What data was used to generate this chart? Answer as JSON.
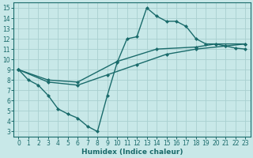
{
  "xlabel": "Humidex (Indice chaleur)",
  "bg_color": "#c8e8e8",
  "grid_color": "#a8d0d0",
  "line_color": "#1a6b6b",
  "marker": "D",
  "markersize": 2.5,
  "linewidth": 1.0,
  "xlim": [
    -0.5,
    23.5
  ],
  "ylim": [
    2.5,
    15.5
  ],
  "xticks": [
    0,
    1,
    2,
    3,
    4,
    5,
    6,
    7,
    8,
    9,
    10,
    11,
    12,
    13,
    14,
    15,
    16,
    17,
    18,
    19,
    20,
    21,
    22,
    23
  ],
  "yticks": [
    3,
    4,
    5,
    6,
    7,
    8,
    9,
    10,
    11,
    12,
    13,
    14,
    15
  ],
  "series1": [
    [
      0,
      9.0
    ],
    [
      1,
      8.0
    ],
    [
      2,
      7.5
    ],
    [
      3,
      6.5
    ],
    [
      4,
      5.2
    ],
    [
      5,
      4.7
    ],
    [
      6,
      4.3
    ],
    [
      7,
      3.5
    ],
    [
      8,
      3.0
    ],
    [
      9,
      6.5
    ],
    [
      10,
      9.7
    ],
    [
      11,
      12.0
    ],
    [
      12,
      12.2
    ],
    [
      13,
      15.0
    ],
    [
      14,
      14.2
    ],
    [
      15,
      13.7
    ],
    [
      16,
      13.7
    ],
    [
      17,
      13.2
    ],
    [
      18,
      12.0
    ],
    [
      19,
      11.5
    ],
    [
      20,
      11.5
    ],
    [
      21,
      11.3
    ],
    [
      22,
      11.1
    ],
    [
      23,
      11.0
    ]
  ],
  "series2": [
    [
      0,
      9.0
    ],
    [
      3,
      7.8
    ],
    [
      6,
      7.5
    ],
    [
      9,
      8.5
    ],
    [
      12,
      9.5
    ],
    [
      15,
      10.5
    ],
    [
      18,
      11.0
    ],
    [
      21,
      11.3
    ],
    [
      23,
      11.5
    ]
  ],
  "series3": [
    [
      0,
      9.0
    ],
    [
      3,
      8.0
    ],
    [
      6,
      7.8
    ],
    [
      10,
      9.8
    ],
    [
      14,
      11.0
    ],
    [
      18,
      11.2
    ],
    [
      20,
      11.5
    ],
    [
      23,
      11.5
    ]
  ]
}
